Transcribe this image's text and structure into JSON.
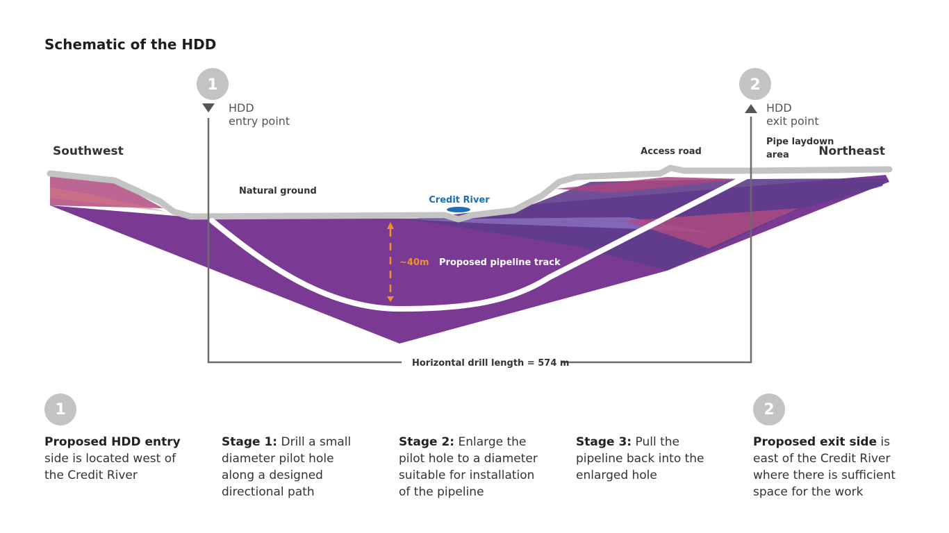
{
  "title": "Schematic of the HDD",
  "diagram": {
    "entry": {
      "number": "1",
      "line1": "HDD",
      "line2": "entry point"
    },
    "exit": {
      "number": "2",
      "line1": "HDD",
      "line2": "exit point"
    },
    "southwest": "Southwest",
    "northeast": "Northeast",
    "natural_ground": "Natural ground",
    "credit_river": "Credit River",
    "access_road": "Access road",
    "pipe_laydown_1": "Pipe laydown",
    "pipe_laydown_2": "area",
    "depth": "~40m",
    "pipeline_track": "Proposed pipeline track",
    "drill_length": "Horizontal drill length = 574 m"
  },
  "colors": {
    "ground_line": "#c4c4c4",
    "purple_main": "#7a3a93",
    "purple_dark": "#5f3d8c",
    "rose": "#b24a80",
    "river": "#1a6fb5",
    "orange": "#f0902a",
    "badge": "#c3c3c3"
  },
  "bottom": {
    "badge1": "1",
    "badge2": "2",
    "col1": {
      "bold": "Proposed HDD entry",
      "text": " side is located west of the Credit River"
    },
    "col2": {
      "bold": "Stage 1:",
      "text": " Drill a small diameter pilot hole along a designed directional path"
    },
    "col3": {
      "bold": "Stage 2:",
      "text": " Enlarge the pilot hole to a diameter suitable for installation of the pipeline"
    },
    "col4": {
      "bold": "Stage 3:",
      "text": " Pull the pipeline back into the enlarged hole"
    },
    "col5": {
      "bold": "Proposed exit side",
      "text": " is east of the Credit River where there is sufficient space for the work"
    }
  }
}
